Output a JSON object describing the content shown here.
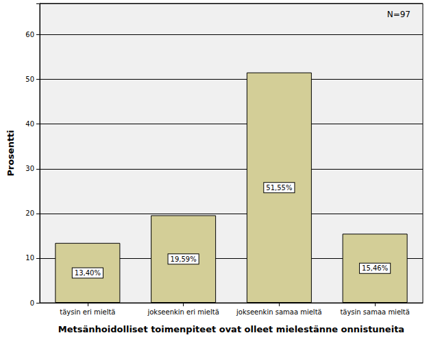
{
  "chart_data": {
    "type": "bar",
    "x_label": "Metsänhoidolliset toimenpiteet ovat olleet mielestänne onnistuneita",
    "y_label": "Prosentti",
    "annotation": "N=97",
    "categories": [
      "täysin eri mieltä",
      "jokseenkin eri mieltä",
      "jokseenkin samaa mieltä",
      "täysin samaa mieltä"
    ],
    "values": [
      13.4,
      19.59,
      51.55,
      15.46
    ],
    "value_labels": [
      "13,40%",
      "19,59%",
      "51,55%",
      "15,46%"
    ],
    "data_labels": true,
    "color": "#d3ce97",
    "ylim": [
      0,
      67
    ],
    "yticks": [
      0,
      10,
      20,
      30,
      40,
      50,
      60
    ],
    "grid": true
  }
}
